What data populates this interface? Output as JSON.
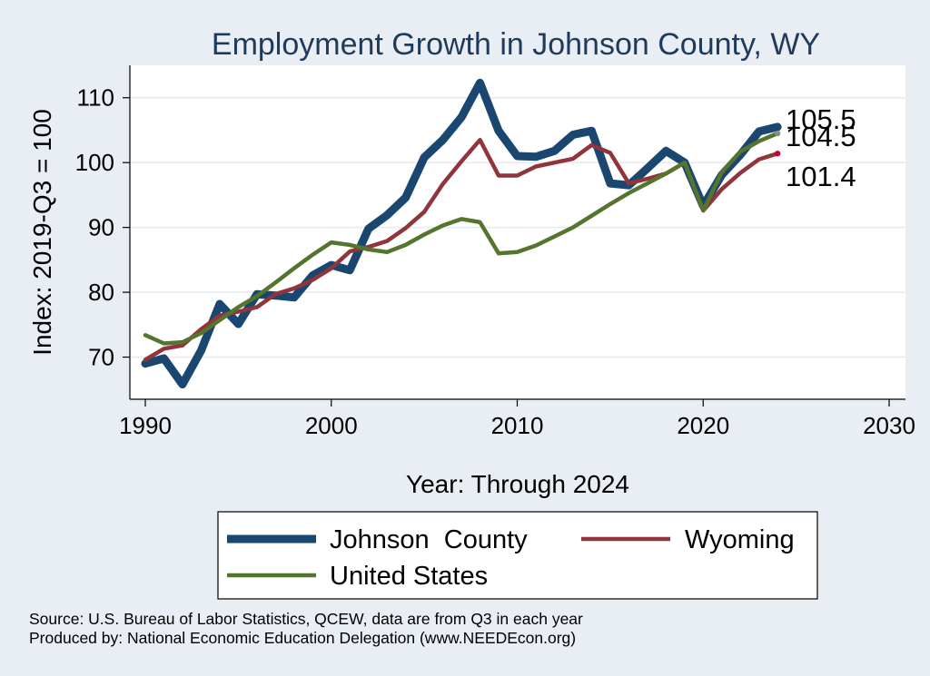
{
  "chart_data": {
    "type": "line",
    "title": "Employment Growth in Johnson County, WY",
    "xlabel": "Year: Through 2024",
    "ylabel": "Index: 2019-Q3 = 100",
    "xlim": [
      1990,
      2030
    ],
    "ylim": [
      63.5,
      115
    ],
    "xticks": [
      1990,
      2000,
      2010,
      2020,
      2030
    ],
    "yticks": [
      70,
      80,
      90,
      100,
      110
    ],
    "grid": true,
    "legend_position": "bottom",
    "x": [
      1990,
      1991,
      1992,
      1993,
      1994,
      1995,
      1996,
      1997,
      1998,
      1999,
      2000,
      2001,
      2002,
      2003,
      2004,
      2005,
      2006,
      2007,
      2008,
      2009,
      2010,
      2011,
      2012,
      2013,
      2014,
      2015,
      2016,
      2017,
      2018,
      2019,
      2020,
      2021,
      2022,
      2023,
      2024
    ],
    "series": [
      {
        "name": "Johnson  County",
        "color": "#1a476f",
        "values": [
          69.0,
          69.8,
          65.8,
          71.0,
          78.2,
          75.1,
          79.7,
          79.5,
          79.2,
          82.6,
          84.2,
          83.4,
          89.8,
          91.9,
          94.6,
          100.8,
          103.5,
          107.0,
          112.3,
          104.9,
          101.0,
          100.9,
          101.8,
          104.3,
          104.9,
          96.8,
          96.5,
          99.1,
          101.8,
          100.0,
          93.3,
          98.1,
          101.2,
          104.8,
          105.5
        ],
        "end_label": "105.5",
        "end_color": "#1a476f"
      },
      {
        "name": "Wyoming",
        "color": "#90353b",
        "values": [
          69.6,
          71.3,
          71.8,
          74.3,
          76.4,
          77.0,
          77.7,
          79.7,
          80.6,
          81.9,
          83.7,
          86.3,
          87.0,
          87.9,
          89.9,
          92.4,
          96.7,
          100.2,
          103.5,
          98.0,
          98.0,
          99.4,
          100.0,
          100.6,
          102.7,
          101.5,
          96.8,
          97.5,
          98.3,
          100.0,
          92.6,
          95.9,
          98.4,
          100.5,
          101.4
        ],
        "end_label": "101.4",
        "end_color": "#c10534"
      },
      {
        "name": "United States",
        "color": "#55752f",
        "values": [
          73.4,
          72.1,
          72.3,
          73.7,
          75.7,
          77.7,
          79.4,
          81.5,
          83.7,
          85.8,
          87.7,
          87.3,
          86.6,
          86.2,
          87.3,
          88.9,
          90.3,
          91.3,
          90.8,
          86.0,
          86.2,
          87.2,
          88.6,
          90.0,
          91.8,
          93.6,
          95.3,
          96.8,
          98.3,
          100.0,
          92.6,
          98.5,
          101.7,
          103.3,
          104.5
        ],
        "end_label": "104.5",
        "end_color": "#7b9284"
      }
    ]
  },
  "notes": {
    "source": "Source: U.S. Bureau of Labor Statistics, QCEW, data are from Q3 in each year",
    "produced_by": "Produced by: National Economic Education Delegation (www.NEEDEcon.org)"
  }
}
